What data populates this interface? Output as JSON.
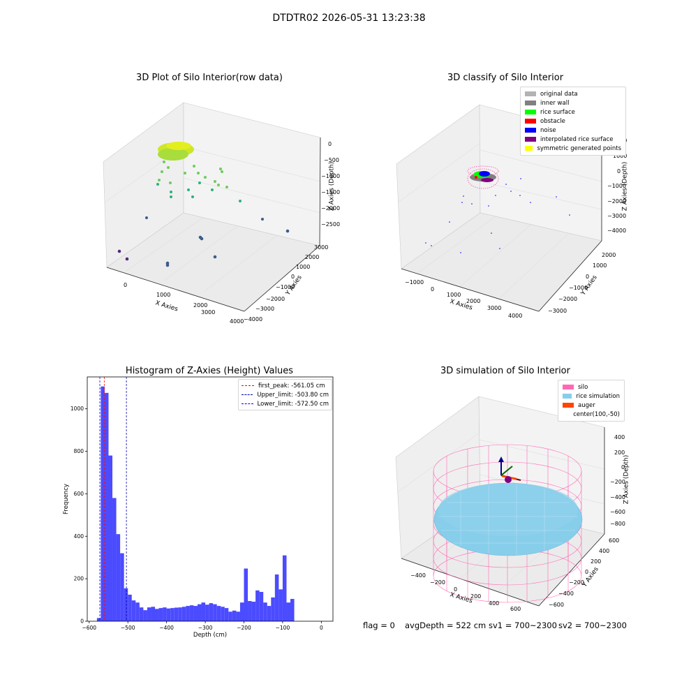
{
  "suptitle": "DTDTR02 2026-05-31 13:23:38",
  "footer": {
    "flag": "flag = 0",
    "avg_depth": "avgDepth = 522 cm",
    "sv1": "sv1 = 700~2300",
    "sv2": "sv2 = 700~2300"
  },
  "panels": {
    "raw": {
      "title": "3D Plot of Silo Interior(row data)",
      "xlabel": "X Axies",
      "ylabel": "Y Axies",
      "zlabel": "Z Axies (Depth)",
      "xticks": [
        "0",
        "1000",
        "2000",
        "3000",
        "4000"
      ],
      "yticks": [
        "−4000",
        "−3000",
        "−2000",
        "−1000",
        "0",
        "1000",
        "2000",
        "3000"
      ],
      "zticks": [
        "0",
        "−500",
        "−1000",
        "−1500",
        "−2000",
        "−2500"
      ]
    },
    "classify": {
      "title": "3D classify of Silo Interior",
      "xlabel": "X Axies",
      "ylabel": "Y Axies",
      "zlabel": "Z Axies (Depth)",
      "xticks": [
        "−1000",
        "0",
        "1000",
        "2000",
        "3000",
        "4000"
      ],
      "yticks": [
        "−3000",
        "−2000",
        "−1000",
        "0",
        "1000",
        "2000"
      ],
      "zticks": [
        "2000",
        "1000",
        "0",
        "−1000",
        "−2000",
        "−3000",
        "−4000"
      ],
      "legend": [
        {
          "label": "original data",
          "color": "#b3b3b3"
        },
        {
          "label": "inner wall",
          "color": "#808080"
        },
        {
          "label": "rice surface",
          "color": "#00ff00"
        },
        {
          "label": "obstacle",
          "color": "#ff0000"
        },
        {
          "label": "noise",
          "color": "#0000ff"
        },
        {
          "label": "interpolated rice surface",
          "color": "#800080"
        },
        {
          "label": "symmetric generated points",
          "color": "#ffff00"
        }
      ]
    },
    "simulation": {
      "title": "3D simulation of Silo Interior",
      "xlabel": "X Axies",
      "ylabel": "Y Axies",
      "zlabel": "Z Axies (Depth)",
      "xticks": [
        "−400",
        "−200",
        "0",
        "200",
        "400",
        "600"
      ],
      "yticks": [
        "−600",
        "−400",
        "−200",
        "0",
        "200",
        "400",
        "600"
      ],
      "zticks": [
        "400",
        "200",
        "0",
        "−200",
        "−400",
        "−600",
        "−800"
      ],
      "legend": [
        {
          "label": "silo",
          "color": "#ff69b4"
        },
        {
          "label": "rice simulation",
          "color": "#87ceeb"
        },
        {
          "label": "auger",
          "color": "#ff4500"
        },
        {
          "label": "center(100,-50)",
          "color": ""
        }
      ]
    }
  },
  "chart_data": {
    "type": "bar",
    "title": "Histogram of Z-Axies (Height) Values",
    "xlabel": "Depth (cm)",
    "ylabel": "Frequency",
    "xlim": [
      -605,
      30
    ],
    "ylim": [
      0,
      1150
    ],
    "xticks": [
      -600,
      -500,
      -400,
      -300,
      -200,
      -100,
      0
    ],
    "yticks": [
      0,
      200,
      400,
      600,
      800,
      1000
    ],
    "bin_start": -580,
    "bin_width": 10,
    "values": [
      15,
      1105,
      1075,
      780,
      580,
      410,
      320,
      155,
      125,
      98,
      88,
      65,
      52,
      65,
      68,
      58,
      62,
      65,
      60,
      62,
      64,
      65,
      68,
      72,
      75,
      72,
      80,
      88,
      78,
      85,
      80,
      72,
      68,
      62,
      45,
      50,
      45,
      88,
      248,
      95,
      92,
      145,
      138,
      88,
      72,
      112,
      220,
      150,
      310,
      88,
      105
    ],
    "color": "#4b4bff",
    "vlines": [
      {
        "label": "first_peak: -561.05 cm",
        "x": -561.05,
        "color": "#ff0000"
      },
      {
        "label": "Upper_limit: -503.80 cm",
        "x": -503.8,
        "color": "#0000aa"
      },
      {
        "label": "Lower_limit: -572.50 cm",
        "x": -572.5,
        "color": "#0000ff"
      }
    ],
    "legend_position": "top-right"
  }
}
